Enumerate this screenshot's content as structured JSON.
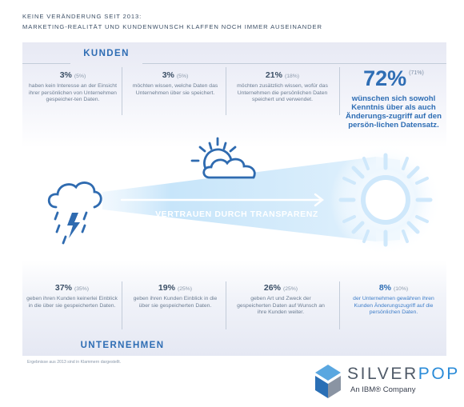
{
  "header": {
    "line1": "Keine Veränderung seit 2013:",
    "line2": "Marketing-Realität und Kundenwunsch klaffen noch immer auseinander"
  },
  "kunden": {
    "title": "KUNDEN",
    "items": [
      {
        "pct": "3%",
        "prev": "(5%)",
        "text": "haben kein Interesse an der Einsicht ihrer persönlichen von Unternehmen gespeicher-ten Daten."
      },
      {
        "pct": "3%",
        "prev": "(5%)",
        "text": "möchten wissen, welche Daten das Unternehmen über sie speichert."
      },
      {
        "pct": "21%",
        "prev": "(18%)",
        "text": "möchten zusätzlich wissen, wofür das Unternehmen die persönlichen Daten speichert und verwendet."
      }
    ],
    "highlight": {
      "pct": "72%",
      "prev": "(71%)",
      "text": "wünschen sich sowohl Kenntnis über als auch Änderungs-zugriff auf den persön-lichen Datensatz."
    }
  },
  "banner": "VERTRAUEN DURCH TRANSPARENZ",
  "unternehmen": {
    "title": "UNTERNEHMEN",
    "items": [
      {
        "pct": "37%",
        "prev": "(35%)",
        "text": "geben ihren Kunden keinerlei Einblick in die über sie gespeicherten Daten."
      },
      {
        "pct": "19%",
        "prev": "(25%)",
        "text": "geben ihren Kunden Einblick in die über sie gespeicherten Daten."
      },
      {
        "pct": "26%",
        "prev": "(25%)",
        "text": "geben Art und Zweck der gespeicherten Daten auf Wunsch an ihre Kunden weiter."
      },
      {
        "pct": "8%",
        "prev": "(10%)",
        "text": "der Unternehmen gewähren ihren Kunden Änderungszugriff auf die persönlichen Daten."
      }
    ]
  },
  "footnote": "Ergebnisse aus 2013 sind in Klammern dargestellt.",
  "logo": {
    "name_part1": "SILVER",
    "name_part2": "POP",
    "sub": "An IBM® Company"
  },
  "colors": {
    "accent": "#2e6db4",
    "text": "#6c7d92",
    "sun": "#cfe8fb"
  },
  "icons": [
    "storm-cloud-icon",
    "sun-cloud-icon",
    "sun-icon",
    "arrow-icon",
    "lightning-icon"
  ]
}
